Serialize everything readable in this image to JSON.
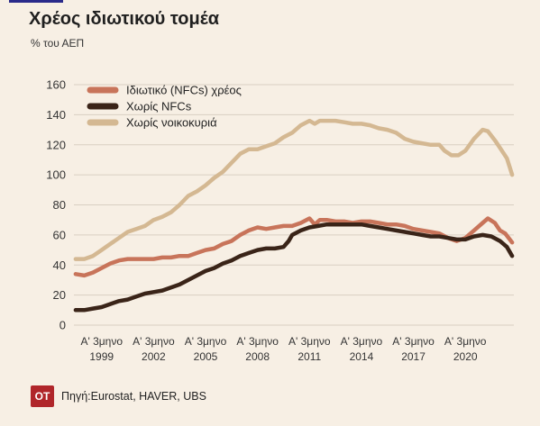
{
  "header": {
    "title": "Χρέος ιδιωτικού τομέα",
    "subtitle": "% του ΑΕΠ"
  },
  "footer": {
    "logo_text": "OT",
    "source": "Πηγή:Eurostat, HAVER, UBS"
  },
  "colors": {
    "background": "#f7efe4",
    "grid": "#d9cfc2",
    "private_debt": "#c8745a",
    "no_nfcs": "#3a2418",
    "no_households": "#d4b892",
    "logo": "#b0262a"
  },
  "chart_data": {
    "type": "line",
    "title": "Χρέος ιδιωτικού τομέα",
    "ylabel": "% του ΑΕΠ",
    "ylim": [
      0,
      160
    ],
    "yticks": [
      "0",
      "20",
      "40",
      "60",
      "80",
      "100",
      "120",
      "140",
      "160"
    ],
    "xlim": [
      1997.4,
      2022.8
    ],
    "xticks": [
      {
        "x": 1999,
        "line1": "Α' 3μηνο",
        "line2": "1999"
      },
      {
        "x": 2002,
        "line1": "Α' 3μηνο",
        "line2": "2002"
      },
      {
        "x": 2005,
        "line1": "Α' 3μηνο",
        "line2": "2005"
      },
      {
        "x": 2008,
        "line1": "Α' 3μηνο",
        "line2": "2008"
      },
      {
        "x": 2011,
        "line1": "Α' 3μηνο",
        "line2": "2011"
      },
      {
        "x": 2014,
        "line1": "Α' 3μηνο",
        "line2": "2014"
      },
      {
        "x": 2017,
        "line1": "Α' 3μηνο",
        "line2": "2017"
      },
      {
        "x": 2020,
        "line1": "Α' 3μηνο",
        "line2": "2020"
      }
    ],
    "legend_position": "top-left",
    "series": [
      {
        "name": "Ιδιωτικό (NFCs) χρέος",
        "color": "#c8745a",
        "points": [
          [
            1997.5,
            34
          ],
          [
            1998.0,
            33
          ],
          [
            1998.5,
            35
          ],
          [
            1999.0,
            38
          ],
          [
            1999.5,
            41
          ],
          [
            2000.0,
            43
          ],
          [
            2000.5,
            44
          ],
          [
            2001.0,
            44
          ],
          [
            2001.5,
            44
          ],
          [
            2002.0,
            44
          ],
          [
            2002.5,
            45
          ],
          [
            2003.0,
            45
          ],
          [
            2003.5,
            46
          ],
          [
            2004.0,
            46
          ],
          [
            2004.5,
            48
          ],
          [
            2005.0,
            50
          ],
          [
            2005.5,
            51
          ],
          [
            2006.0,
            54
          ],
          [
            2006.5,
            56
          ],
          [
            2007.0,
            60
          ],
          [
            2007.5,
            63
          ],
          [
            2008.0,
            65
          ],
          [
            2008.5,
            64
          ],
          [
            2009.0,
            65
          ],
          [
            2009.5,
            66
          ],
          [
            2010.0,
            66
          ],
          [
            2010.5,
            68
          ],
          [
            2011.0,
            71
          ],
          [
            2011.3,
            67
          ],
          [
            2011.6,
            70
          ],
          [
            2012.0,
            70
          ],
          [
            2012.5,
            69
          ],
          [
            2013.0,
            69
          ],
          [
            2013.5,
            68
          ],
          [
            2014.0,
            69
          ],
          [
            2014.5,
            69
          ],
          [
            2015.0,
            68
          ],
          [
            2015.5,
            67
          ],
          [
            2016.0,
            67
          ],
          [
            2016.5,
            66
          ],
          [
            2017.0,
            64
          ],
          [
            2017.5,
            63
          ],
          [
            2018.0,
            62
          ],
          [
            2018.5,
            61
          ],
          [
            2019.0,
            58
          ],
          [
            2019.5,
            56
          ],
          [
            2020.0,
            58
          ],
          [
            2020.5,
            63
          ],
          [
            2021.0,
            68
          ],
          [
            2021.3,
            71
          ],
          [
            2021.7,
            68
          ],
          [
            2022.0,
            63
          ],
          [
            2022.3,
            61
          ],
          [
            2022.7,
            55
          ]
        ]
      },
      {
        "name": "Χωρίς NFCs",
        "color": "#3a2418",
        "points": [
          [
            1997.5,
            10
          ],
          [
            1998.0,
            10
          ],
          [
            1998.5,
            11
          ],
          [
            1999.0,
            12
          ],
          [
            1999.5,
            14
          ],
          [
            2000.0,
            16
          ],
          [
            2000.5,
            17
          ],
          [
            2001.0,
            19
          ],
          [
            2001.5,
            21
          ],
          [
            2002.0,
            22
          ],
          [
            2002.5,
            23
          ],
          [
            2003.0,
            25
          ],
          [
            2003.5,
            27
          ],
          [
            2004.0,
            30
          ],
          [
            2004.5,
            33
          ],
          [
            2005.0,
            36
          ],
          [
            2005.5,
            38
          ],
          [
            2006.0,
            41
          ],
          [
            2006.5,
            43
          ],
          [
            2007.0,
            46
          ],
          [
            2007.5,
            48
          ],
          [
            2008.0,
            50
          ],
          [
            2008.5,
            51
          ],
          [
            2009.0,
            51
          ],
          [
            2009.5,
            52
          ],
          [
            2009.8,
            56
          ],
          [
            2010.0,
            60
          ],
          [
            2010.5,
            63
          ],
          [
            2011.0,
            65
          ],
          [
            2011.5,
            66
          ],
          [
            2012.0,
            67
          ],
          [
            2012.5,
            67
          ],
          [
            2013.0,
            67
          ],
          [
            2013.5,
            67
          ],
          [
            2014.0,
            67
          ],
          [
            2014.5,
            66
          ],
          [
            2015.0,
            65
          ],
          [
            2015.5,
            64
          ],
          [
            2016.0,
            63
          ],
          [
            2016.5,
            62
          ],
          [
            2017.0,
            61
          ],
          [
            2017.5,
            60
          ],
          [
            2018.0,
            59
          ],
          [
            2018.5,
            59
          ],
          [
            2019.0,
            58
          ],
          [
            2019.5,
            57
          ],
          [
            2020.0,
            57
          ],
          [
            2020.5,
            59
          ],
          [
            2021.0,
            60
          ],
          [
            2021.5,
            59
          ],
          [
            2022.0,
            56
          ],
          [
            2022.4,
            52
          ],
          [
            2022.7,
            46
          ]
        ]
      },
      {
        "name": "Χωρίς νοικοκυριά",
        "color": "#d4b892",
        "points": [
          [
            1997.5,
            44
          ],
          [
            1998.0,
            44
          ],
          [
            1998.5,
            46
          ],
          [
            1999.0,
            50
          ],
          [
            1999.5,
            54
          ],
          [
            2000.0,
            58
          ],
          [
            2000.5,
            62
          ],
          [
            2001.0,
            64
          ],
          [
            2001.5,
            66
          ],
          [
            2002.0,
            70
          ],
          [
            2002.5,
            72
          ],
          [
            2003.0,
            75
          ],
          [
            2003.5,
            80
          ],
          [
            2004.0,
            86
          ],
          [
            2004.5,
            89
          ],
          [
            2005.0,
            93
          ],
          [
            2005.5,
            98
          ],
          [
            2006.0,
            102
          ],
          [
            2006.5,
            108
          ],
          [
            2007.0,
            114
          ],
          [
            2007.5,
            117
          ],
          [
            2008.0,
            117
          ],
          [
            2008.5,
            119
          ],
          [
            2009.0,
            121
          ],
          [
            2009.5,
            125
          ],
          [
            2010.0,
            128
          ],
          [
            2010.5,
            133
          ],
          [
            2011.0,
            136
          ],
          [
            2011.3,
            134
          ],
          [
            2011.6,
            136
          ],
          [
            2012.0,
            136
          ],
          [
            2012.5,
            136
          ],
          [
            2013.0,
            135
          ],
          [
            2013.5,
            134
          ],
          [
            2014.0,
            134
          ],
          [
            2014.5,
            133
          ],
          [
            2015.0,
            131
          ],
          [
            2015.5,
            130
          ],
          [
            2016.0,
            128
          ],
          [
            2016.5,
            124
          ],
          [
            2017.0,
            122
          ],
          [
            2017.5,
            121
          ],
          [
            2018.0,
            120
          ],
          [
            2018.5,
            120
          ],
          [
            2018.8,
            116
          ],
          [
            2019.2,
            113
          ],
          [
            2019.6,
            113
          ],
          [
            2020.0,
            116
          ],
          [
            2020.5,
            124
          ],
          [
            2021.0,
            130
          ],
          [
            2021.3,
            129
          ],
          [
            2021.7,
            123
          ],
          [
            2022.0,
            118
          ],
          [
            2022.4,
            111
          ],
          [
            2022.7,
            100
          ]
        ]
      }
    ]
  }
}
